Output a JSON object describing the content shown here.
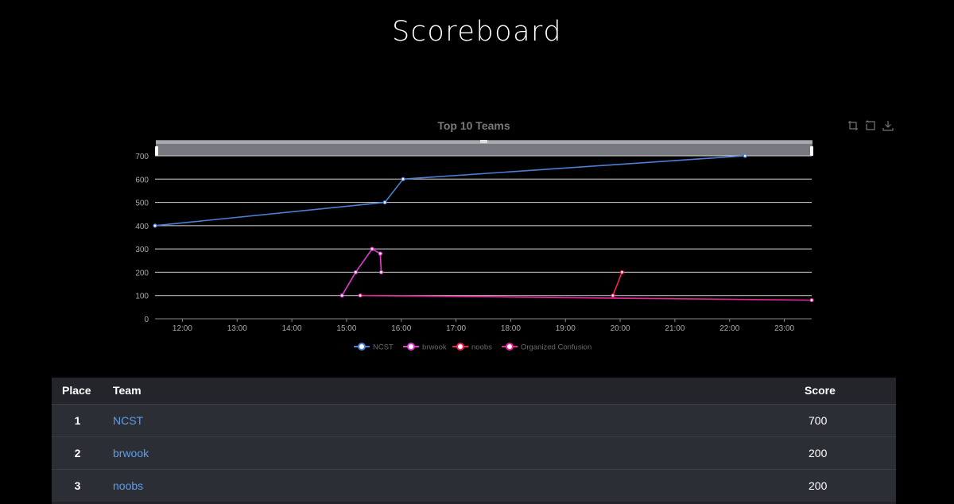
{
  "page": {
    "title": "Scoreboard"
  },
  "toolbox": {
    "icons": [
      "zoom-in-icon",
      "zoom-reset-icon",
      "download-icon"
    ]
  },
  "chart_data": {
    "type": "line",
    "title": "Top 10 Teams",
    "xlabel": "",
    "ylabel": "",
    "x_ticks": [
      "12:00",
      "13:00",
      "14:00",
      "15:00",
      "16:00",
      "17:00",
      "18:00",
      "19:00",
      "20:00",
      "21:00",
      "22:00",
      "23:00"
    ],
    "xlim": [
      "11:30",
      "23:30"
    ],
    "ylim": [
      0,
      700
    ],
    "y_ticks": [
      0,
      100,
      200,
      300,
      400,
      500,
      600,
      700
    ],
    "grid": true,
    "legend_position": "bottom",
    "series": [
      {
        "name": "NCST",
        "color": "#4a7fd6",
        "points": [
          [
            "11:30",
            400
          ],
          [
            "15:42",
            500
          ],
          [
            "16:02",
            600
          ],
          [
            "22:17",
            700
          ]
        ]
      },
      {
        "name": "brwook",
        "color": "#e23ad0",
        "points": [
          [
            "14:55",
            100
          ],
          [
            "15:10",
            200
          ],
          [
            "15:28",
            300
          ],
          [
            "15:37",
            280
          ],
          [
            "15:38",
            200
          ]
        ]
      },
      {
        "name": "noobs",
        "color": "#f0214f",
        "points": [
          [
            "19:52",
            100
          ],
          [
            "20:02",
            200
          ]
        ]
      },
      {
        "name": "Organized Confusion",
        "color": "#e8239a",
        "points": [
          [
            "15:15",
            100
          ],
          [
            "23:30",
            80
          ]
        ]
      }
    ]
  },
  "table": {
    "headers": {
      "place": "Place",
      "team": "Team",
      "score": "Score"
    },
    "rows": [
      {
        "place": "1",
        "team": "NCST",
        "score": "700"
      },
      {
        "place": "2",
        "team": "brwook",
        "score": "200"
      },
      {
        "place": "3",
        "team": "noobs",
        "score": "200"
      }
    ]
  }
}
